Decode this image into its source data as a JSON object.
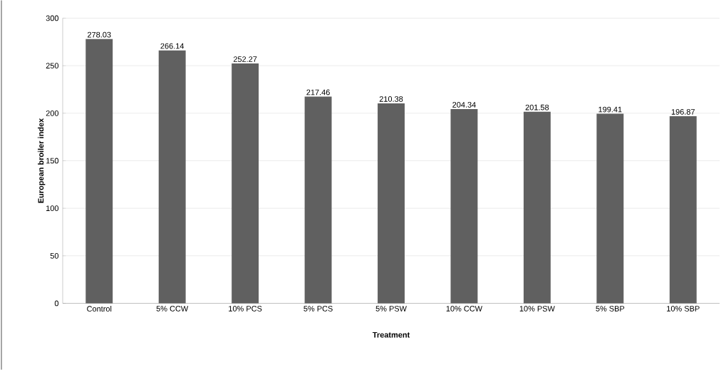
{
  "chart_data": {
    "type": "bar",
    "xlabel": "Treatment",
    "ylabel": "European broiler index",
    "categories": [
      "Control",
      "5% CCW",
      "10% PCS",
      "5% PCS",
      "5% PSW",
      "10% CCW",
      "10% PSW",
      "5% SBP",
      "10% SBP"
    ],
    "values": [
      278.03,
      266.14,
      252.27,
      217.46,
      210.38,
      204.34,
      201.58,
      199.41,
      196.87
    ],
    "color": "#606060",
    "ylim": [
      0,
      300
    ],
    "yticks": [
      0,
      50,
      100,
      150,
      200,
      250,
      300
    ],
    "grid": "y",
    "data_labels": true
  }
}
